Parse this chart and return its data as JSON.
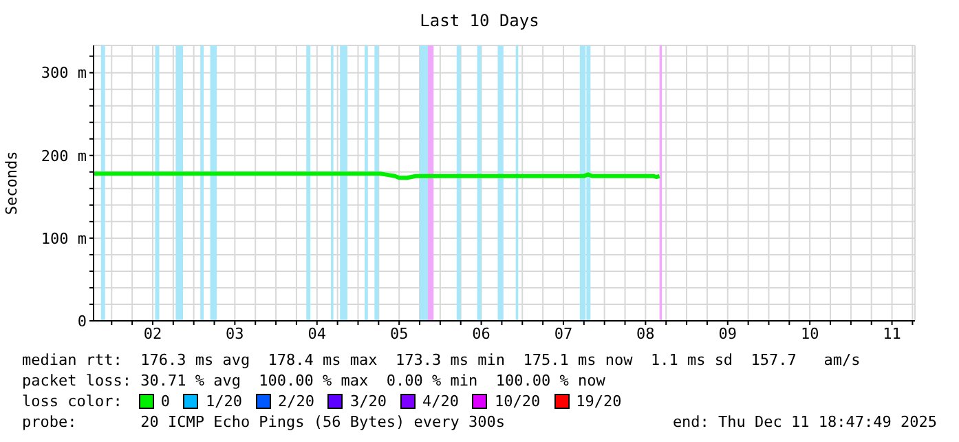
{
  "chart_data": {
    "type": "line",
    "title": "Last 10 Days",
    "ylabel": "Seconds",
    "legend_title": "loss color:",
    "legend": "bottom",
    "grid": true,
    "marker": "none",
    "line_style": "solid",
    "x": [
      1.78,
      5.27,
      5.33,
      5.45,
      5.5,
      5.6,
      5.7,
      6.0,
      7.75,
      7.8,
      7.85,
      8.6,
      8.63,
      8.67
    ],
    "series": [
      {
        "name": "0",
        "color": "#00ee00",
        "values": [
          178,
          178,
          177,
          175,
          173,
          173,
          175,
          175,
          175,
          177,
          175,
          175,
          174,
          175
        ]
      },
      {
        "name": "1/20",
        "color": "#00b8ff",
        "values": [
          null,
          null,
          null,
          null,
          null,
          null,
          null,
          null,
          null,
          null,
          null,
          null,
          null,
          null
        ]
      },
      {
        "name": "2/20",
        "color": "#0059ff",
        "values": [
          null,
          null,
          null,
          null,
          null,
          null,
          null,
          null,
          null,
          null,
          null,
          null,
          null,
          null
        ]
      },
      {
        "name": "3/20",
        "color": "#5e00ff",
        "values": [
          null,
          null,
          null,
          null,
          null,
          null,
          null,
          null,
          null,
          null,
          null,
          null,
          null,
          null
        ]
      },
      {
        "name": "4/20",
        "color": "#7e00ff",
        "values": [
          null,
          null,
          null,
          null,
          null,
          null,
          null,
          null,
          null,
          null,
          null,
          null,
          null,
          null
        ]
      },
      {
        "name": "10/20",
        "color": "#dd00ff",
        "values": [
          null,
          null,
          null,
          null,
          null,
          null,
          null,
          null,
          null,
          null,
          null,
          null,
          null,
          null
        ]
      },
      {
        "name": "19/20",
        "color": "#ff0000",
        "values": [
          null,
          null,
          null,
          null,
          null,
          null,
          null,
          null,
          null,
          null,
          null,
          null,
          null,
          null
        ]
      }
    ],
    "xlim": [
      1.78,
      11.78
    ],
    "xticks": [
      {
        "value": 2,
        "label": null
      },
      {
        "value": 2.25,
        "label": null
      },
      {
        "value": 2.5,
        "label": "02"
      },
      {
        "value": 2.75,
        "label": null
      },
      {
        "value": 3,
        "label": null
      },
      {
        "value": 3.25,
        "label": null
      },
      {
        "value": 3.5,
        "label": "03"
      },
      {
        "value": 3.75,
        "label": null
      },
      {
        "value": 4,
        "label": null
      },
      {
        "value": 4.25,
        "label": null
      },
      {
        "value": 4.5,
        "label": "04"
      },
      {
        "value": 4.75,
        "label": null
      },
      {
        "value": 5,
        "label": null
      },
      {
        "value": 5.25,
        "label": null
      },
      {
        "value": 5.5,
        "label": "05"
      },
      {
        "value": 5.75,
        "label": null
      },
      {
        "value": 6,
        "label": null
      },
      {
        "value": 6.25,
        "label": null
      },
      {
        "value": 6.5,
        "label": "06"
      },
      {
        "value": 6.75,
        "label": null
      },
      {
        "value": 7,
        "label": null
      },
      {
        "value": 7.25,
        "label": null
      },
      {
        "value": 7.5,
        "label": "07"
      },
      {
        "value": 7.75,
        "label": null
      },
      {
        "value": 8,
        "label": null
      },
      {
        "value": 8.25,
        "label": null
      },
      {
        "value": 8.5,
        "label": "08"
      },
      {
        "value": 8.75,
        "label": null
      },
      {
        "value": 9,
        "label": null
      },
      {
        "value": 9.25,
        "label": null
      },
      {
        "value": 9.5,
        "label": "09"
      },
      {
        "value": 9.75,
        "label": null
      },
      {
        "value": 10,
        "label": null
      },
      {
        "value": 10.25,
        "label": null
      },
      {
        "value": 10.5,
        "label": "10"
      },
      {
        "value": 10.75,
        "label": null
      },
      {
        "value": 11,
        "label": null
      },
      {
        "value": 11.25,
        "label": null
      },
      {
        "value": 11.5,
        "label": "11"
      },
      {
        "value": 11.75,
        "label": null
      }
    ],
    "ylim": [
      0,
      333
    ],
    "yticks": [
      0,
      {
        "value": 20,
        "label": null
      },
      {
        "value": 40,
        "label": null
      },
      {
        "value": 60,
        "label": null
      },
      {
        "value": 80,
        "label": null
      },
      {
        "value": 100,
        "label": "100 m"
      },
      {
        "value": 120,
        "label": null
      },
      {
        "value": 140,
        "label": null
      },
      {
        "value": 160,
        "label": null
      },
      {
        "value": 180,
        "label": null
      },
      {
        "value": 200,
        "label": "200 m"
      },
      {
        "value": 220,
        "label": null
      },
      {
        "value": 240,
        "label": null
      },
      {
        "value": 260,
        "label": null
      },
      {
        "value": 280,
        "label": null
      },
      {
        "value": 300,
        "label": "300 m"
      },
      {
        "value": 320,
        "label": null
      }
    ],
    "bands": [
      {
        "axis": "x",
        "from": 1.87,
        "to": 1.92,
        "color": "#a8e6fa"
      },
      {
        "axis": "x",
        "from": 2.53,
        "to": 2.58,
        "color": "#a8e6fa"
      },
      {
        "axis": "x",
        "from": 2.78,
        "to": 2.87,
        "color": "#a8e6fa"
      },
      {
        "axis": "x",
        "from": 3.08,
        "to": 3.12,
        "color": "#a8e6fa"
      },
      {
        "axis": "x",
        "from": 3.2,
        "to": 3.28,
        "color": "#a8e6fa"
      },
      {
        "axis": "x",
        "from": 4.37,
        "to": 4.42,
        "color": "#a8e6fa"
      },
      {
        "axis": "x",
        "from": 4.67,
        "to": 4.7,
        "color": "#a8e6fa"
      },
      {
        "axis": "x",
        "from": 4.78,
        "to": 4.87,
        "color": "#a8e6fa"
      },
      {
        "axis": "x",
        "from": 5.08,
        "to": 5.12,
        "color": "#a8e6fa"
      },
      {
        "axis": "x",
        "from": 5.2,
        "to": 5.25,
        "color": "#a8e6fa"
      },
      {
        "axis": "x",
        "from": 5.75,
        "to": 5.85,
        "color": "#a8e6fa"
      },
      {
        "axis": "x",
        "from": 5.85,
        "to": 5.92,
        "color": "#f0a8fa"
      },
      {
        "axis": "x",
        "from": 6.2,
        "to": 6.25,
        "color": "#a8e6fa"
      },
      {
        "axis": "x",
        "from": 6.45,
        "to": 6.5,
        "color": "#a8e6fa"
      },
      {
        "axis": "x",
        "from": 6.7,
        "to": 6.77,
        "color": "#a8e6fa"
      },
      {
        "axis": "x",
        "from": 6.92,
        "to": 6.95,
        "color": "#a8e6fa"
      },
      {
        "axis": "x",
        "from": 7.7,
        "to": 7.77,
        "color": "#a8e6fa"
      },
      {
        "axis": "x",
        "from": 7.78,
        "to": 7.83,
        "color": "#a8e6fa"
      },
      {
        "axis": "x",
        "from": 8.67,
        "to": 8.7,
        "color": "#f0a8fa"
      }
    ],
    "annotations": [
      "median rtt:  176.3 ms avg  178.4 ms max  173.3 ms min  175.1 ms now  1.1 ms sd  157.7   am/s",
      "packet loss: 30.71 % avg  100.00 % max  0.00 % min  100.00 % now",
      "probe:       20 ICMP Echo Pings (56 Bytes) every 300s",
      "end: Thu Dec 11 18:47:49 2025"
    ]
  }
}
